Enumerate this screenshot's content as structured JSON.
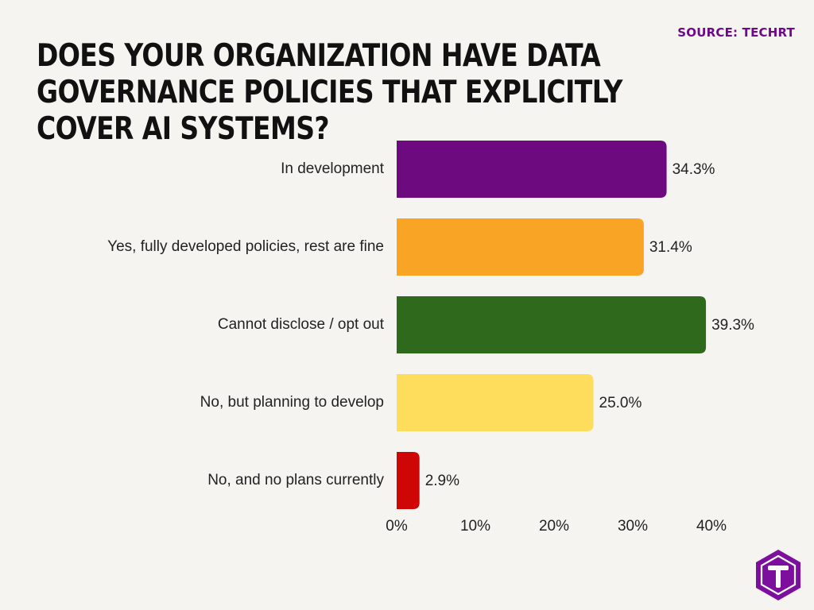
{
  "source_text": "SOURCE: TECHRT",
  "chart_data": {
    "type": "bar",
    "orientation": "horizontal",
    "title": "Does your organization have data governance policies that explicitly cover AI systems?",
    "categories": [
      "In development",
      "Yes, fully developed policies, rest are fine",
      "Cannot disclose / opt out",
      "No, but planning to develop",
      "No, and no plans currently"
    ],
    "values": [
      34.3,
      31.4,
      39.3,
      25.0,
      2.9
    ],
    "value_labels": [
      "34.3%",
      "31.4%",
      "39.3%",
      "25.0%",
      "2.9%"
    ],
    "colors": [
      "#6d0a80",
      "#f9a424",
      "#2f6a1c",
      "#fedd5d",
      "#cf0606"
    ],
    "xlim": [
      0,
      40
    ],
    "xticks": [
      0,
      10,
      20,
      30,
      40
    ],
    "xtick_labels": [
      "0%",
      "10%",
      "20%",
      "30%",
      "40%"
    ],
    "grid": false,
    "legend": "none"
  },
  "logo": {
    "icon": "t-hexagon-logo-icon",
    "color": "#7d0f9e"
  }
}
